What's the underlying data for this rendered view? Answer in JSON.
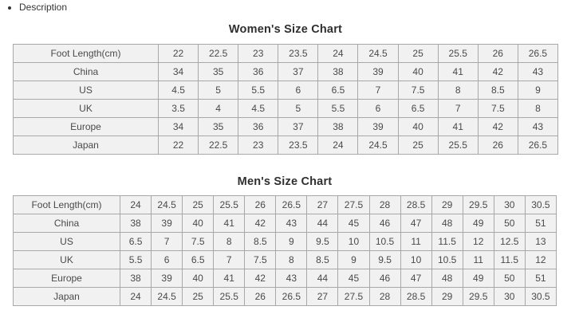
{
  "description": {
    "label": "Description"
  },
  "colors": {
    "cell_bg": "#f1f1f1",
    "border": "#a8a8a8",
    "cell_text": "#4a4a4a",
    "title_text": "#2f2f2f"
  },
  "womens_chart": {
    "title": "Women's Size Chart",
    "rows": [
      {
        "label": "Foot Length(cm)",
        "values": [
          "22",
          "22.5",
          "23",
          "23.5",
          "24",
          "24.5",
          "25",
          "25.5",
          "26",
          "26.5"
        ]
      },
      {
        "label": "China",
        "values": [
          "34",
          "35",
          "36",
          "37",
          "38",
          "39",
          "40",
          "41",
          "42",
          "43"
        ]
      },
      {
        "label": "US",
        "values": [
          "4.5",
          "5",
          "5.5",
          "6",
          "6.5",
          "7",
          "7.5",
          "8",
          "8.5",
          "9"
        ]
      },
      {
        "label": "UK",
        "values": [
          "3.5",
          "4",
          "4.5",
          "5",
          "5.5",
          "6",
          "6.5",
          "7",
          "7.5",
          "8"
        ]
      },
      {
        "label": "Europe",
        "values": [
          "34",
          "35",
          "36",
          "37",
          "38",
          "39",
          "40",
          "41",
          "42",
          "43"
        ]
      },
      {
        "label": "Japan",
        "values": [
          "22",
          "22.5",
          "23",
          "23.5",
          "24",
          "24.5",
          "25",
          "25.5",
          "26",
          "26.5"
        ]
      }
    ]
  },
  "mens_chart": {
    "title": "Men's Size Chart",
    "rows": [
      {
        "label": "Foot Length(cm)",
        "values": [
          "24",
          "24.5",
          "25",
          "25.5",
          "26",
          "26.5",
          "27",
          "27.5",
          "28",
          "28.5",
          "29",
          "29.5",
          "30",
          "30.5"
        ]
      },
      {
        "label": "China",
        "values": [
          "38",
          "39",
          "40",
          "41",
          "42",
          "43",
          "44",
          "45",
          "46",
          "47",
          "48",
          "49",
          "50",
          "51"
        ]
      },
      {
        "label": "US",
        "values": [
          "6.5",
          "7",
          "7.5",
          "8",
          "8.5",
          "9",
          "9.5",
          "10",
          "10.5",
          "11",
          "11.5",
          "12",
          "12.5",
          "13"
        ]
      },
      {
        "label": "UK",
        "values": [
          "5.5",
          "6",
          "6.5",
          "7",
          "7.5",
          "8",
          "8.5",
          "9",
          "9.5",
          "10",
          "10.5",
          "11",
          "11.5",
          "12"
        ]
      },
      {
        "label": "Europe",
        "values": [
          "38",
          "39",
          "40",
          "41",
          "42",
          "43",
          "44",
          "45",
          "46",
          "47",
          "48",
          "49",
          "50",
          "51"
        ]
      },
      {
        "label": "Japan",
        "values": [
          "24",
          "24.5",
          "25",
          "25.5",
          "26",
          "26.5",
          "27",
          "27.5",
          "28",
          "28.5",
          "29",
          "29.5",
          "30",
          "30.5"
        ]
      }
    ]
  }
}
